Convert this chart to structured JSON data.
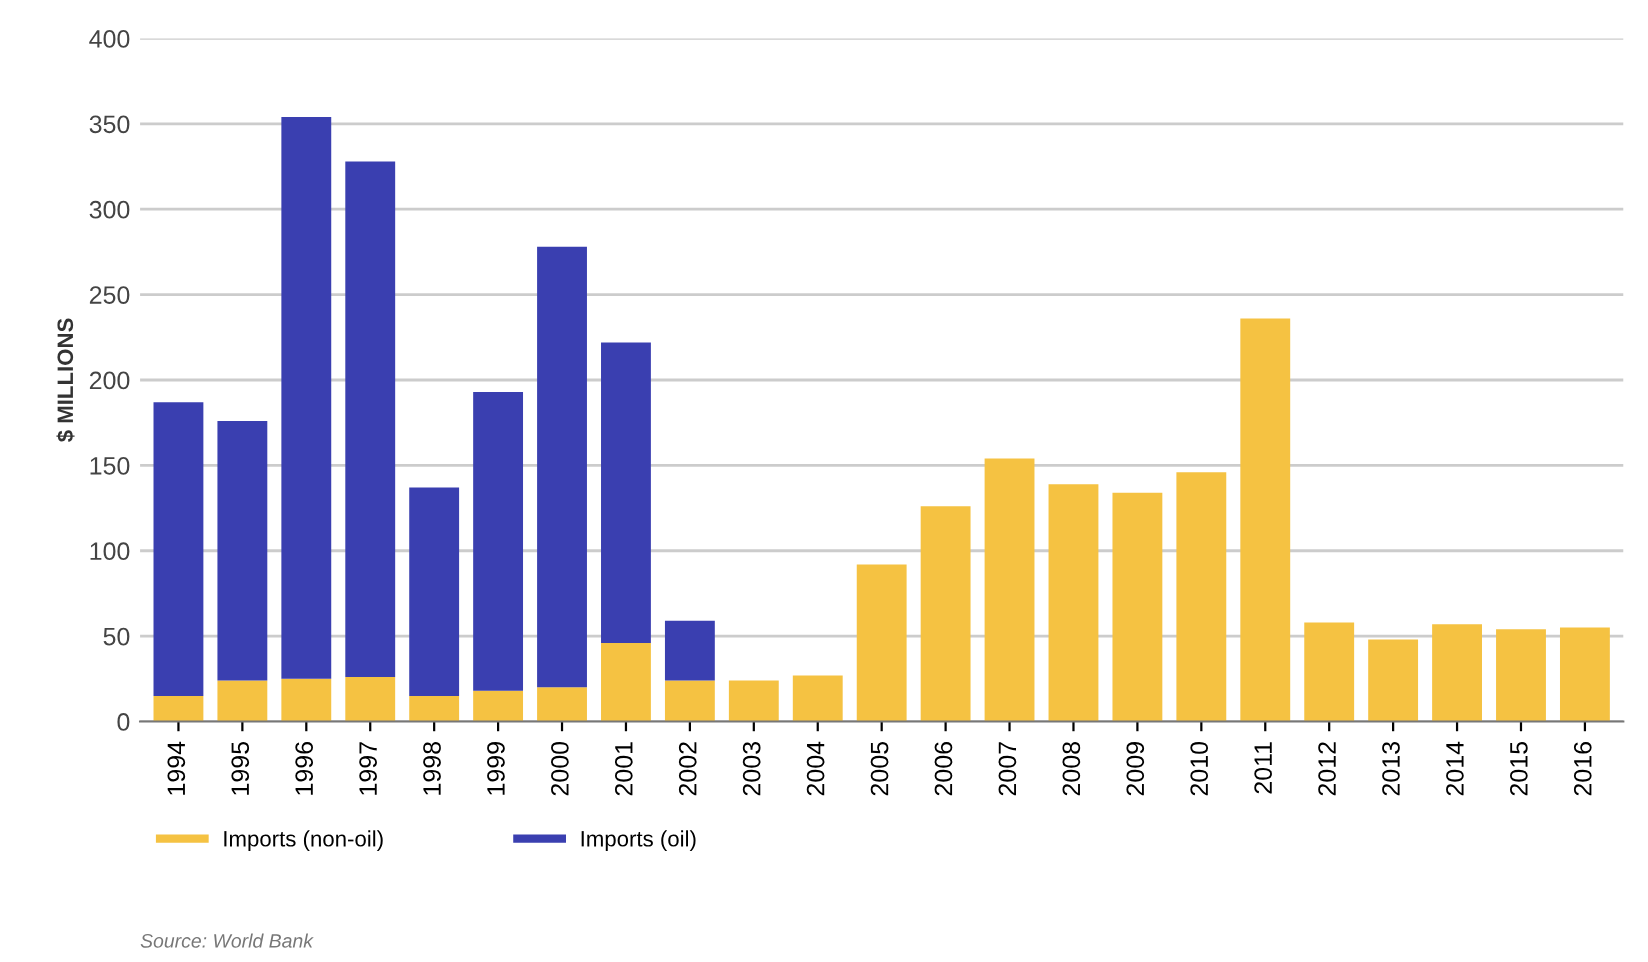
{
  "chart_data": {
    "type": "bar",
    "stacked": true,
    "ylabel": "$ MILLIONS",
    "categories": [
      "1994",
      "1995",
      "1996",
      "1997",
      "1998",
      "1999",
      "2000",
      "2001",
      "2002",
      "2003",
      "2004",
      "2005",
      "2006",
      "2007",
      "2008",
      "2009",
      "2010",
      "2011",
      "2012",
      "2013",
      "2014",
      "2015",
      "2016"
    ],
    "series": [
      {
        "name": "Imports (non-oil)",
        "color": "#f5c242",
        "values": [
          15,
          24,
          25,
          26,
          15,
          18,
          20,
          46,
          24,
          24,
          27,
          92,
          126,
          154,
          139,
          134,
          146,
          236,
          58,
          48,
          57,
          54,
          55
        ]
      },
      {
        "name": "Imports (oil)",
        "color": "#3a3fb0",
        "values": [
          172,
          152,
          329,
          302,
          122,
          175,
          258,
          176,
          35,
          null,
          null,
          null,
          null,
          null,
          null,
          null,
          null,
          null,
          null,
          null,
          null,
          null,
          null
        ]
      }
    ],
    "ylim": [
      0,
      400
    ],
    "yticks": [
      0,
      50,
      100,
      150,
      200,
      250,
      300,
      350,
      400
    ],
    "grid": "y",
    "legend": "bottom",
    "annotations": [
      "Source: World Bank"
    ]
  }
}
